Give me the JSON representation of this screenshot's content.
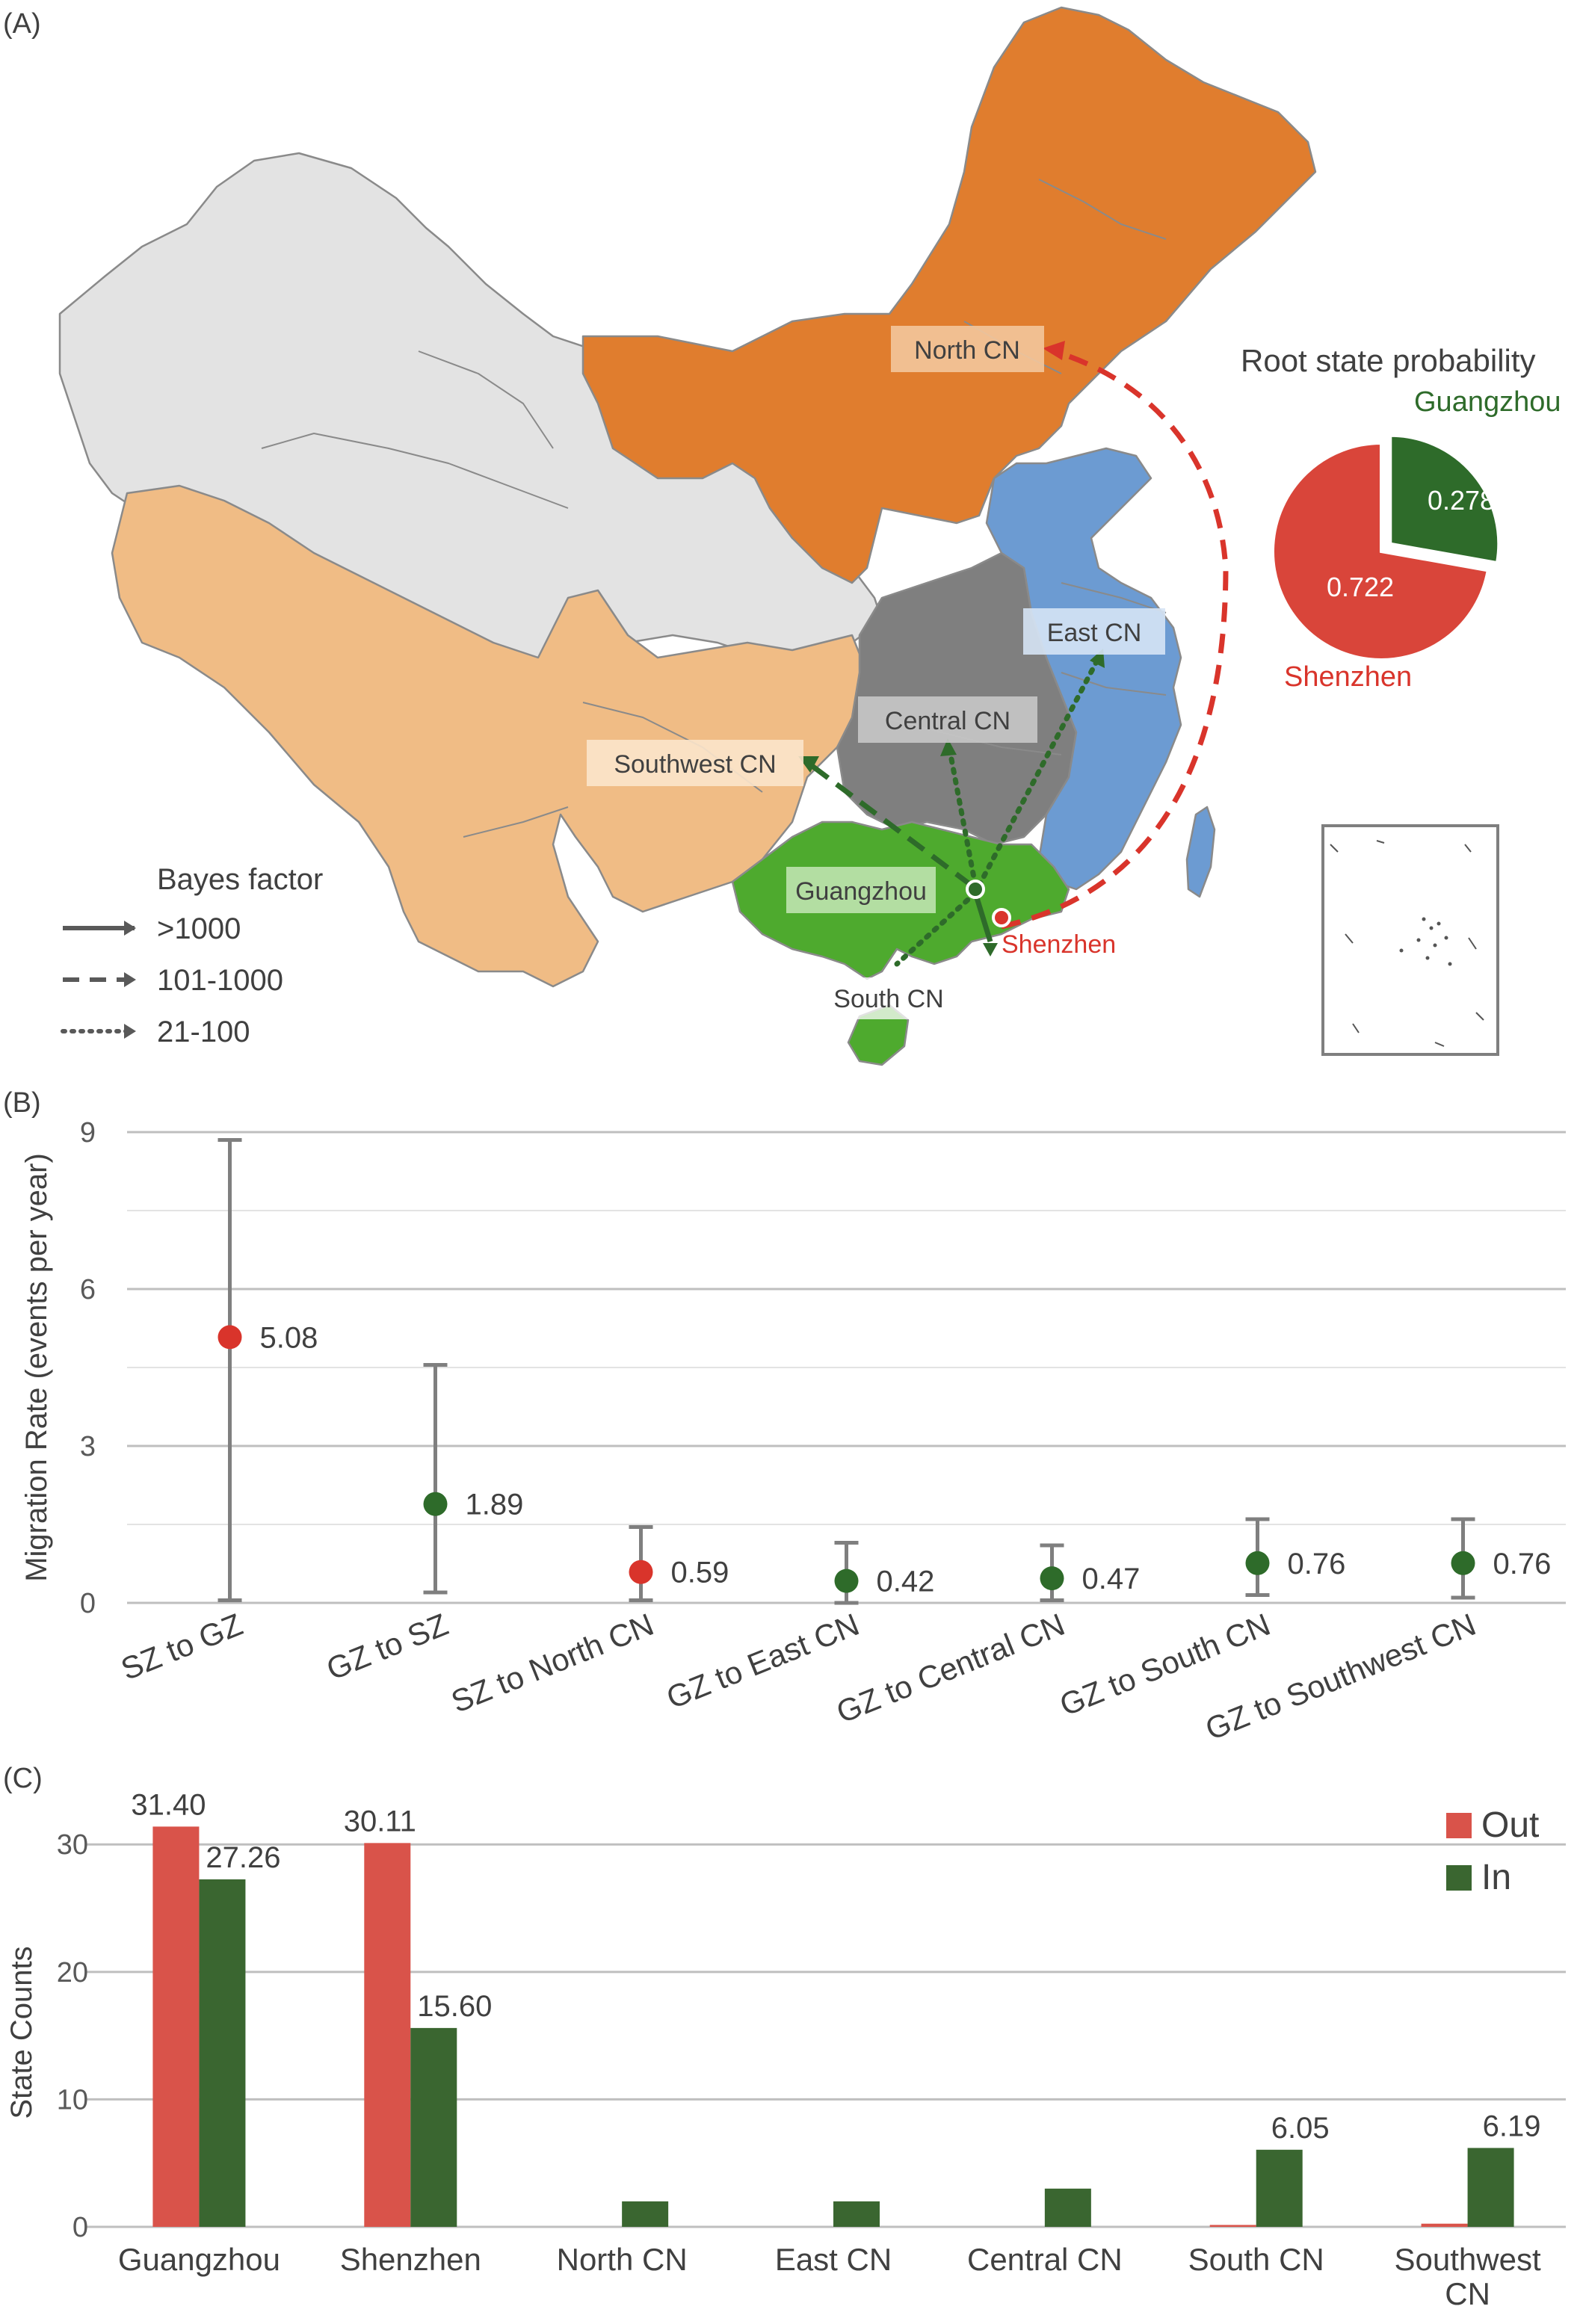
{
  "panel_labels": {
    "a": "(A)",
    "b": "(B)",
    "c": "(C)"
  },
  "map": {
    "regions": {
      "north": "North CN",
      "east": "East CN",
      "central": "Central CN",
      "southwest": "Southwest CN",
      "guangzhou": "Guangzhou",
      "shenzhen": "Shenzhen",
      "south": "South CN"
    },
    "colors": {
      "north": "#E07D2E",
      "east": "#6C9BD2",
      "central": "#7F7F7F",
      "southwest": "#F0BC85",
      "south": "#4EAA2E",
      "other": "#E3E3E3",
      "shenzhen_arrow": "#D9342B",
      "guangzhou_arrow": "#2E6B2A"
    },
    "legend": {
      "title": "Bayes factor",
      "items": [
        {
          "label": ">1000",
          "style": "solid"
        },
        {
          "label": "101-1000",
          "style": "dashed"
        },
        {
          "label": "21-100",
          "style": "dotted"
        }
      ]
    },
    "root_pie": {
      "title": "Root state probability",
      "slices": [
        {
          "label": "Guangzhou",
          "value": 0.278,
          "color": "#2E6B2A"
        },
        {
          "label": "Shenzhen",
          "value": 0.722,
          "color": "#D9453A"
        }
      ]
    }
  },
  "chart_data": [
    {
      "type": "scatter",
      "panel": "B",
      "title": "",
      "ylabel": "Migration Rate (events per year)",
      "ylim": [
        0,
        9
      ],
      "yticks": [
        0,
        3,
        6,
        9
      ],
      "grid": true,
      "categories": [
        "SZ to GZ",
        "GZ to SZ",
        "SZ to North CN",
        "GZ to East CN",
        "GZ to Central CN",
        "GZ to South CN",
        "GZ to Southwest CN"
      ],
      "values": [
        5.08,
        1.89,
        0.59,
        0.42,
        0.47,
        0.76,
        0.76
      ],
      "value_labels": [
        "5.08",
        "1.89",
        "0.59",
        "0.42",
        "0.47",
        "0.76",
        "0.76"
      ],
      "lower": [
        0.05,
        0.2,
        0.05,
        0.0,
        0.05,
        0.15,
        0.1
      ],
      "upper": [
        8.85,
        4.55,
        1.45,
        1.15,
        1.1,
        1.6,
        1.6
      ],
      "point_colors": [
        "#D9342B",
        "#2E6B2A",
        "#D9342B",
        "#2E6B2A",
        "#2E6B2A",
        "#2E6B2A",
        "#2E6B2A"
      ]
    },
    {
      "type": "bar",
      "panel": "C",
      "title": "",
      "ylabel": "State Counts",
      "ylim": [
        0,
        34
      ],
      "yticks": [
        0,
        10,
        20,
        30
      ],
      "grid": true,
      "legend": "top-right",
      "categories": [
        "Guangzhou",
        "Shenzhen",
        "North CN",
        "East CN",
        "Central CN",
        "South CN",
        "Southwest CN"
      ],
      "category_lines": [
        [
          "Guangzhou"
        ],
        [
          "Shenzhen"
        ],
        [
          "North CN"
        ],
        [
          "East CN"
        ],
        [
          "Central CN"
        ],
        [
          "South CN"
        ],
        [
          "Southwest",
          "CN"
        ]
      ],
      "series": [
        {
          "name": "Out",
          "color": "#D9534A",
          "values": [
            31.4,
            30.11,
            0,
            0,
            0,
            0.15,
            0.25
          ],
          "labels": [
            "31.40",
            "30.11",
            "",
            "",
            "",
            "",
            ""
          ]
        },
        {
          "name": "In",
          "color": "#3A6630",
          "values": [
            27.26,
            15.6,
            2.0,
            2.0,
            3.0,
            6.05,
            6.19
          ],
          "labels": [
            "27.26",
            "15.60",
            "",
            "",
            "",
            "6.05",
            "6.19"
          ]
        }
      ]
    }
  ]
}
